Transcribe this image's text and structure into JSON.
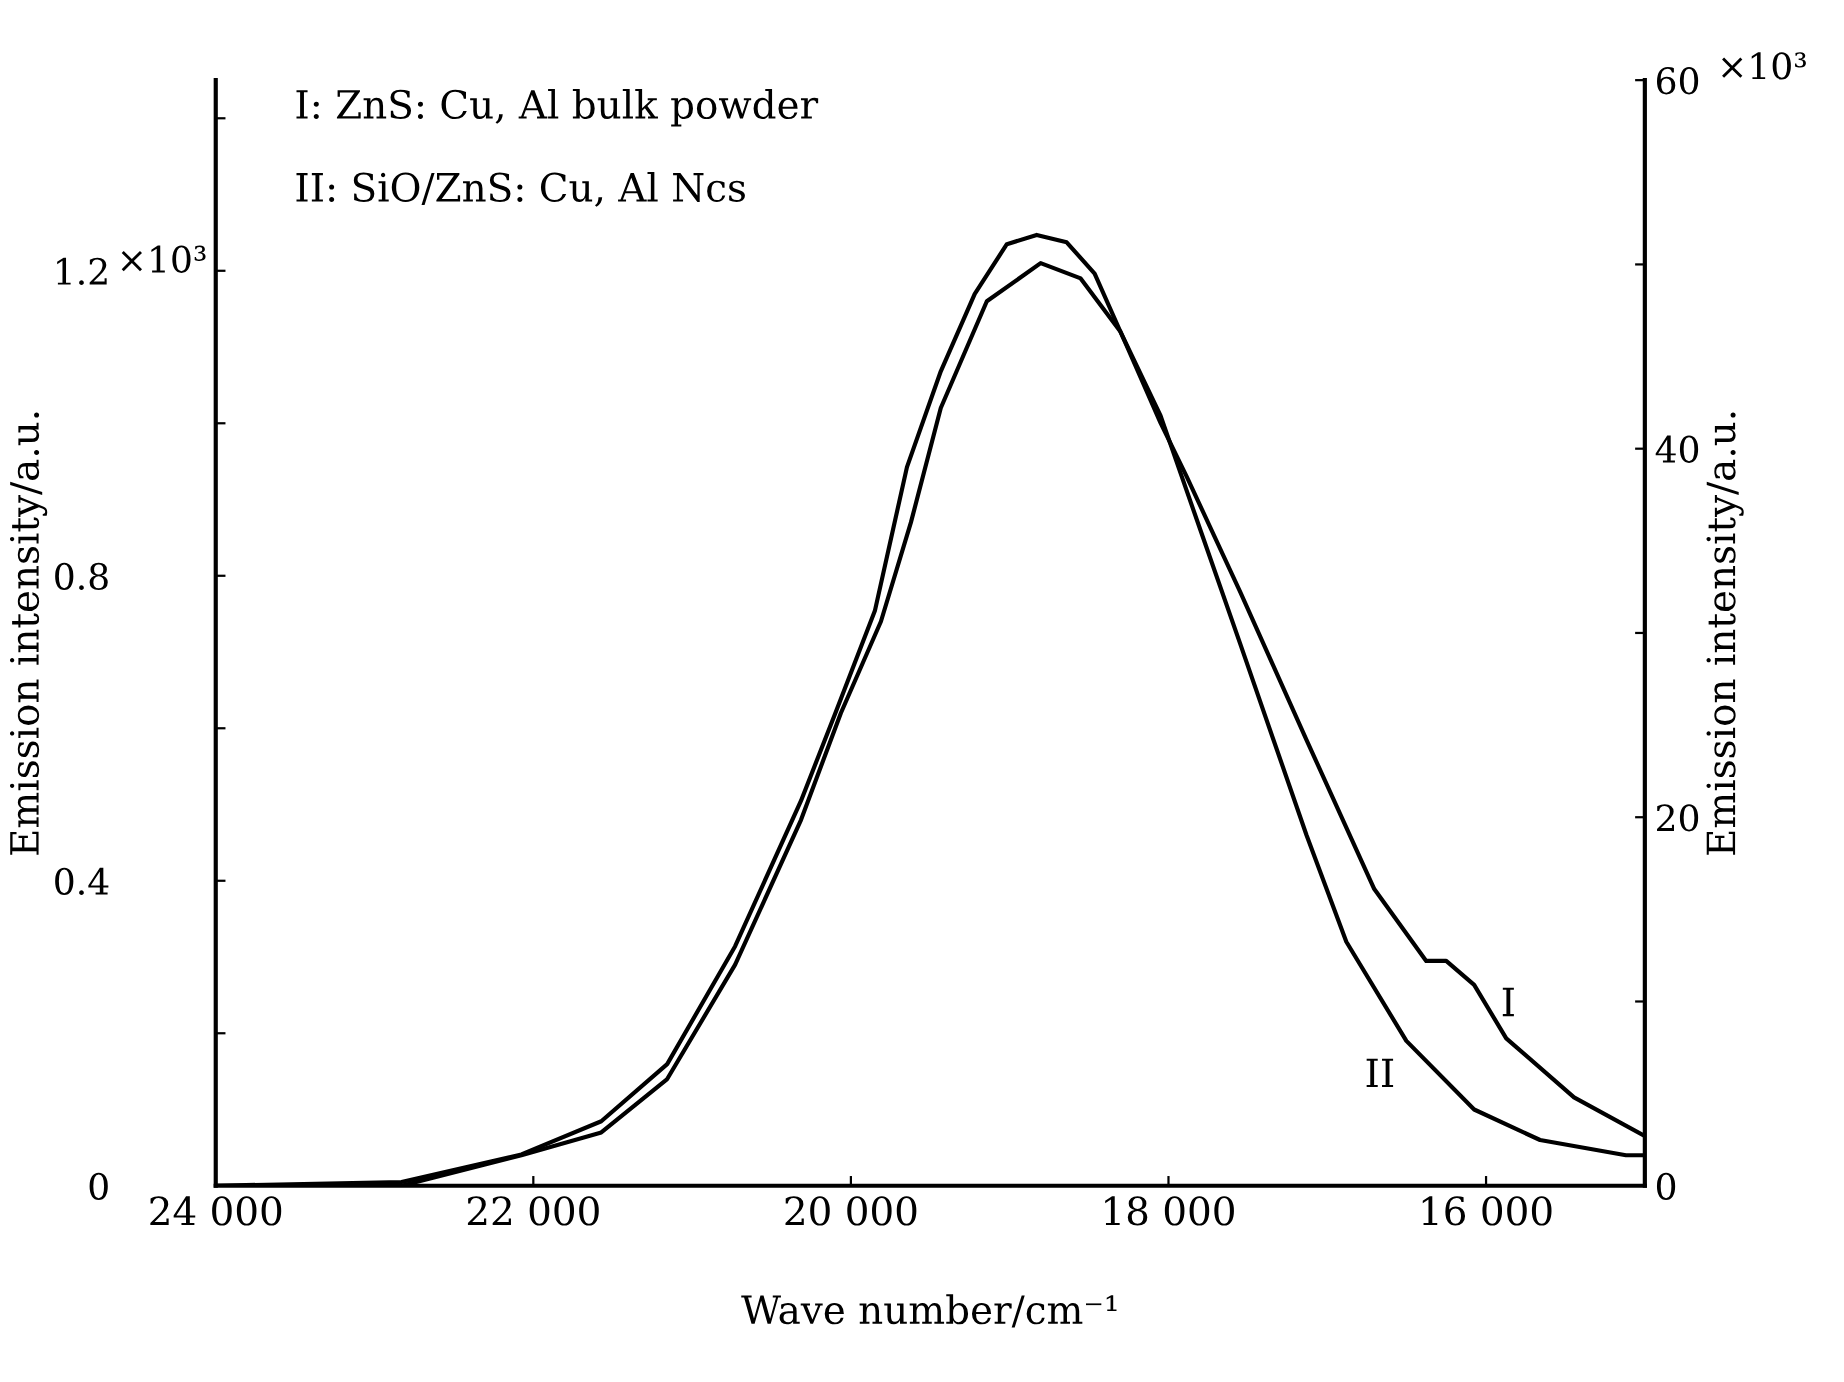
{
  "chart_data": {
    "type": "line",
    "xlabel": "Wave number/cm⁻¹",
    "ylabel": "Emission intensity/a.u.",
    "y2label": "Emission intensity/a.u.",
    "xlim": [
      24000,
      15000
    ],
    "xticks": [
      {
        "value": 24000,
        "label": "24 000"
      },
      {
        "value": 22000,
        "label": "22 000"
      },
      {
        "value": 20000,
        "label": "20 000"
      },
      {
        "value": 18000,
        "label": "18 000"
      },
      {
        "value": 16000,
        "label": "16 000"
      }
    ],
    "ylim": [
      0,
      1.45
    ],
    "yticks": [
      0,
      {
        "value": 0.2,
        "label": null
      },
      0.4,
      {
        "value": 0.6,
        "label": null
      },
      0.8,
      {
        "value": 1.0,
        "label": null
      },
      1.2,
      {
        "value": 1.4,
        "label": null
      }
    ],
    "y2lim": [
      0,
      60
    ],
    "y2ticks": [
      0,
      {
        "value": 10,
        "label": null
      },
      20,
      {
        "value": 30,
        "label": null
      },
      40,
      {
        "value": 50,
        "label": null
      },
      60
    ],
    "grid": false,
    "marker": "none",
    "line_style": "solid",
    "series": [
      {
        "color": "#000000",
        "axis": "y2",
        "x": [
          24000,
          22830,
          22075,
          21572,
          21157,
          20729,
          20314,
          20100,
          19849,
          19647,
          19434,
          19220,
          19018,
          18830,
          18641,
          18465,
          18264,
          18050,
          17886,
          17547,
          17131,
          16704,
          16377,
          16251,
          16075,
          15873,
          15446,
          15000
        ],
        "values": [
          0,
          0.2,
          1.7,
          3.5,
          6.6,
          13.0,
          20.9,
          25.6,
          31.2,
          39.0,
          44.2,
          48.4,
          51.1,
          51.6,
          51.2,
          49.5,
          45.6,
          41.4,
          38.5,
          32.2,
          24.2,
          16.1,
          12.2,
          12.2,
          10.9,
          8.0,
          4.8,
          2.7
        ]
      },
      {
        "color": "#000000",
        "axis": "y",
        "x": [
          24000,
          22830,
          22075,
          21572,
          21157,
          20729,
          20314,
          20063,
          19811,
          19622,
          19434,
          19144,
          18805,
          18553,
          18302,
          18050,
          17799,
          17547,
          17131,
          16880,
          16502,
          16075,
          15660,
          15119,
          15000
        ],
        "values": [
          0.0,
          0.0,
          0.04,
          0.07,
          0.14,
          0.29,
          0.48,
          0.62,
          0.74,
          0.87,
          1.02,
          1.16,
          1.21,
          1.19,
          1.12,
          1.01,
          0.86,
          0.71,
          0.46,
          0.32,
          0.19,
          0.1,
          0.06,
          0.04,
          0.04
        ]
      }
    ],
    "annotations": [
      "I: ZnS: Cu, Al bulk powder",
      "II: SiO/ZnS: Cu, Al Ncs",
      "×10³",
      "×10³",
      {
        "text": "I",
        "x": 15873,
        "y": 0.19
      },
      {
        "text": "II",
        "x": 16502,
        "y": 0.19
      }
    ]
  }
}
